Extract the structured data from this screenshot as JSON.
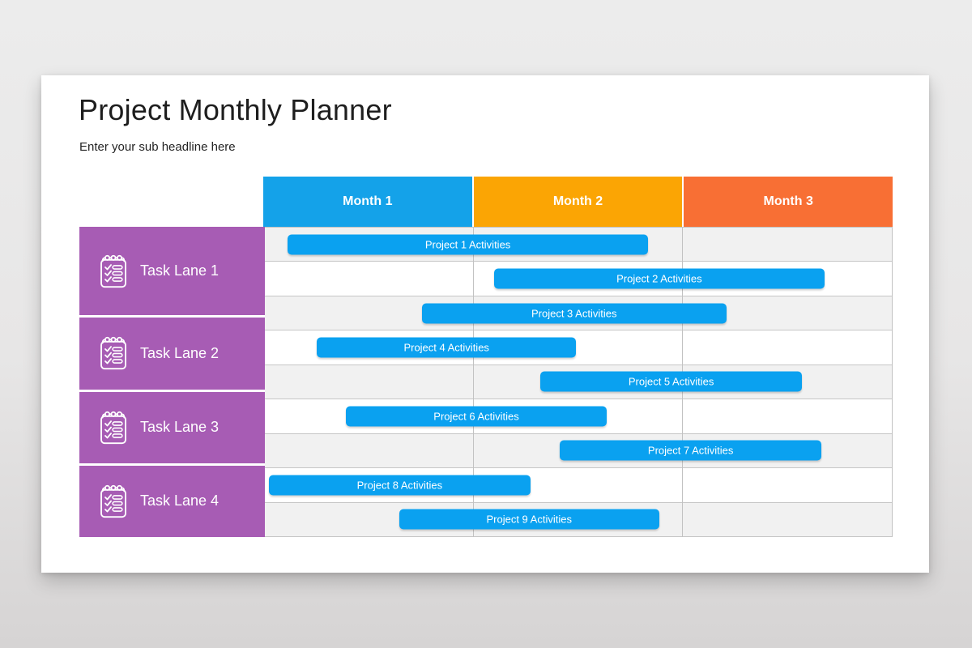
{
  "slide": {
    "title": "Project Monthly Planner",
    "subtitle": "Enter your sub headline here"
  },
  "palette": {
    "month1": "#14a2e9",
    "month2": "#fba504",
    "month3": "#f86f34",
    "lane_purple": "#a75cb4",
    "bar_blue": "#0aa1f0",
    "row_alt_gray": "#f1f1f1",
    "grid_line": "#c2c2c2"
  },
  "icons": {
    "lane_icon": "notepad-checklist-icon"
  },
  "planner": {
    "months": [
      {
        "label": "Month 1",
        "color": "#14a2e9"
      },
      {
        "label": "Month 2",
        "color": "#fba504"
      },
      {
        "label": "Month 3",
        "color": "#f86f34"
      }
    ],
    "lanes": [
      {
        "label": "Task Lane 1",
        "rows": 3
      },
      {
        "label": "Task Lane 2",
        "rows": 2
      },
      {
        "label": "Task Lane 3",
        "rows": 2
      },
      {
        "label": "Task Lane 4",
        "rows": 2
      }
    ],
    "projects": [
      {
        "label": "Project 1 Activities",
        "row": 1,
        "left_pct": 3.9,
        "width_pct": 57.3
      },
      {
        "label": "Project 2 Activities",
        "row": 2,
        "left_pct": 36.7,
        "width_pct": 52.6
      },
      {
        "label": "Project 3 Activities",
        "row": 3,
        "left_pct": 25.2,
        "width_pct": 48.5
      },
      {
        "label": "Project 4 Activities",
        "row": 4,
        "left_pct": 8.5,
        "width_pct": 41.3
      },
      {
        "label": "Project 5 Activities",
        "row": 5,
        "left_pct": 44.1,
        "width_pct": 41.6
      },
      {
        "label": "Project 6 Activities",
        "row": 6,
        "left_pct": 13.1,
        "width_pct": 41.6
      },
      {
        "label": "Project 7 Activities",
        "row": 7,
        "left_pct": 47.2,
        "width_pct": 41.6
      },
      {
        "label": "Project 8 Activities",
        "row": 8,
        "left_pct": 0.9,
        "width_pct": 41.6
      },
      {
        "label": "Project 9 Activities",
        "row": 9,
        "left_pct": 21.6,
        "width_pct": 41.4
      }
    ]
  }
}
